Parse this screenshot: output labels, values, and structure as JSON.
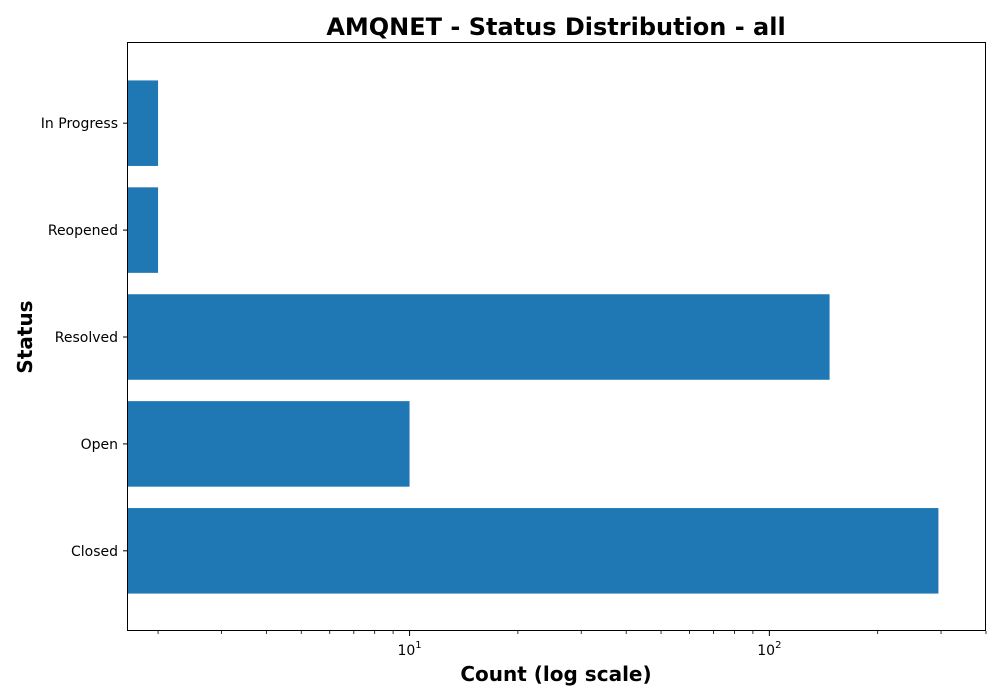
{
  "chart_data": {
    "type": "bar",
    "orientation": "horizontal",
    "title": "AMQNET - Status Distribution - all",
    "xlabel": "Count (log scale)",
    "ylabel": "Status",
    "x_scale": "log",
    "xlim": [
      1.65,
      400
    ],
    "x_major_ticks": [
      {
        "value": 10,
        "base": "10",
        "exp": "1"
      },
      {
        "value": 100,
        "base": "10",
        "exp": "2"
      }
    ],
    "categories": [
      "Closed",
      "Open",
      "Resolved",
      "Reopened",
      "In Progress"
    ],
    "values": [
      295,
      10,
      147,
      2,
      2
    ],
    "bar_color": "#1f77b4",
    "grid": false,
    "legend": "none"
  }
}
